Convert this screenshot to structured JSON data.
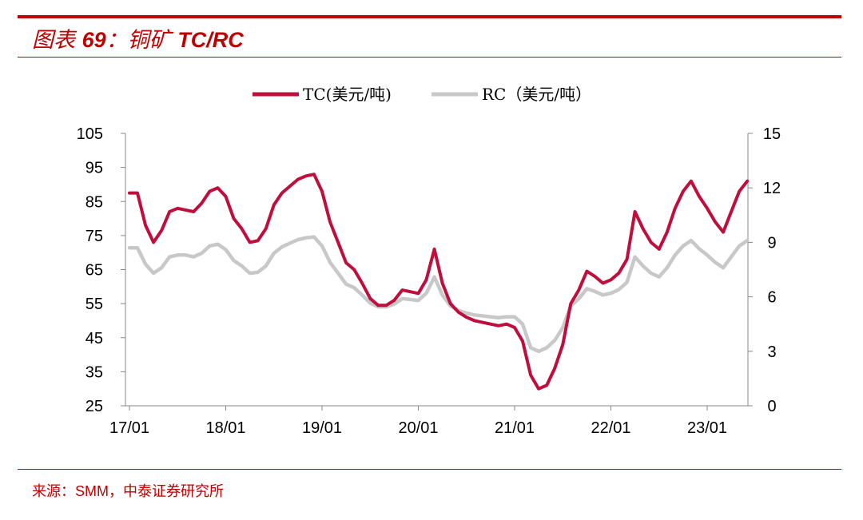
{
  "header": {
    "title_prefix": "图表",
    "title_number": "69",
    "title_sep": "：",
    "title_name": "铜矿",
    "title_code": "TC/RC"
  },
  "footer": {
    "source_label": "来源：",
    "source_en": "SMM",
    "source_rest": "，中泰证券研究所"
  },
  "colors": {
    "accent": "#c00000",
    "tc_line": "#c00d3c",
    "rc_line": "#c8c8c8"
  },
  "chart_data": {
    "type": "line",
    "title": "",
    "xlabel": "",
    "ylabel": "",
    "x_tick_labels": [
      "17/01",
      "18/01",
      "19/01",
      "20/01",
      "21/01",
      "22/01",
      "23/01"
    ],
    "left_axis": {
      "range": [
        25,
        105
      ],
      "ticks": [
        "25",
        "35",
        "45",
        "55",
        "65",
        "75",
        "85",
        "95",
        "105"
      ]
    },
    "right_axis": {
      "range": [
        0,
        15
      ],
      "ticks": [
        "0",
        "3",
        "6",
        "9",
        "12",
        "15"
      ]
    },
    "grid": false,
    "legend_position": "top-center",
    "series": [
      {
        "name": "TC(美元/吨)",
        "axis": "left",
        "color": "#c00d3c",
        "points": [
          [
            "2017-01",
            87.5
          ],
          [
            "2017-02",
            87.5
          ],
          [
            "2017-03",
            78
          ],
          [
            "2017-04",
            73
          ],
          [
            "2017-05",
            76.5
          ],
          [
            "2017-06",
            82
          ],
          [
            "2017-07",
            83
          ],
          [
            "2017-08",
            82.5
          ],
          [
            "2017-09",
            82
          ],
          [
            "2017-10",
            84.5
          ],
          [
            "2017-11",
            88
          ],
          [
            "2017-12",
            89
          ],
          [
            "2018-01",
            86.5
          ],
          [
            "2018-02",
            80
          ],
          [
            "2018-03",
            77
          ],
          [
            "2018-04",
            73
          ],
          [
            "2018-05",
            73.5
          ],
          [
            "2018-06",
            77
          ],
          [
            "2018-07",
            84
          ],
          [
            "2018-08",
            87.5
          ],
          [
            "2018-09",
            89.5
          ],
          [
            "2018-10",
            91.5
          ],
          [
            "2018-11",
            92.5
          ],
          [
            "2018-12",
            93
          ],
          [
            "2019-01",
            88
          ],
          [
            "2019-02",
            79
          ],
          [
            "2019-03",
            73
          ],
          [
            "2019-04",
            67
          ],
          [
            "2019-05",
            65
          ],
          [
            "2019-06",
            61
          ],
          [
            "2019-07",
            56.5
          ],
          [
            "2019-08",
            54.5
          ],
          [
            "2019-09",
            54.5
          ],
          [
            "2019-10",
            56
          ],
          [
            "2019-11",
            59
          ],
          [
            "2019-12",
            58.5
          ],
          [
            "2020-01",
            58
          ],
          [
            "2020-02",
            62
          ],
          [
            "2020-03",
            71
          ],
          [
            "2020-04",
            61
          ],
          [
            "2020-05",
            55
          ],
          [
            "2020-06",
            52.5
          ],
          [
            "2020-07",
            51
          ],
          [
            "2020-08",
            50
          ],
          [
            "2020-09",
            49.5
          ],
          [
            "2020-10",
            49
          ],
          [
            "2020-11",
            48.5
          ],
          [
            "2020-12",
            49
          ],
          [
            "2021-01",
            48
          ],
          [
            "2021-02",
            44
          ],
          [
            "2021-03",
            34
          ],
          [
            "2021-04",
            30
          ],
          [
            "2021-05",
            31
          ],
          [
            "2021-06",
            36
          ],
          [
            "2021-07",
            43
          ],
          [
            "2021-08",
            55
          ],
          [
            "2021-09",
            59
          ],
          [
            "2021-10",
            64.5
          ],
          [
            "2021-11",
            63
          ],
          [
            "2021-12",
            61
          ],
          [
            "2022-01",
            62
          ],
          [
            "2022-02",
            64
          ],
          [
            "2022-03",
            68
          ],
          [
            "2022-04",
            82
          ],
          [
            "2022-05",
            77
          ],
          [
            "2022-06",
            73
          ],
          [
            "2022-07",
            71
          ],
          [
            "2022-08",
            76
          ],
          [
            "2022-09",
            83
          ],
          [
            "2022-10",
            88
          ],
          [
            "2022-11",
            91
          ],
          [
            "2022-12",
            86.5
          ],
          [
            "2023-01",
            83
          ],
          [
            "2023-02",
            79
          ],
          [
            "2023-03",
            76
          ],
          [
            "2023-04",
            82
          ],
          [
            "2023-05",
            88
          ],
          [
            "2023-06",
            91
          ]
        ]
      },
      {
        "name": "RC（美元/吨）",
        "axis": "right",
        "color": "#c8c8c8",
        "points": [
          [
            "2017-01",
            8.7
          ],
          [
            "2017-02",
            8.7
          ],
          [
            "2017-03",
            7.8
          ],
          [
            "2017-04",
            7.3
          ],
          [
            "2017-05",
            7.6
          ],
          [
            "2017-06",
            8.2
          ],
          [
            "2017-07",
            8.3
          ],
          [
            "2017-08",
            8.3
          ],
          [
            "2017-09",
            8.2
          ],
          [
            "2017-10",
            8.4
          ],
          [
            "2017-11",
            8.8
          ],
          [
            "2017-12",
            8.9
          ],
          [
            "2018-01",
            8.6
          ],
          [
            "2018-02",
            8.0
          ],
          [
            "2018-03",
            7.7
          ],
          [
            "2018-04",
            7.3
          ],
          [
            "2018-05",
            7.35
          ],
          [
            "2018-06",
            7.7
          ],
          [
            "2018-07",
            8.4
          ],
          [
            "2018-08",
            8.75
          ],
          [
            "2018-09",
            8.95
          ],
          [
            "2018-10",
            9.15
          ],
          [
            "2018-11",
            9.25
          ],
          [
            "2018-12",
            9.3
          ],
          [
            "2019-01",
            8.8
          ],
          [
            "2019-02",
            7.9
          ],
          [
            "2019-03",
            7.3
          ],
          [
            "2019-04",
            6.7
          ],
          [
            "2019-05",
            6.5
          ],
          [
            "2019-06",
            6.1
          ],
          [
            "2019-07",
            5.65
          ],
          [
            "2019-08",
            5.45
          ],
          [
            "2019-09",
            5.45
          ],
          [
            "2019-10",
            5.6
          ],
          [
            "2019-11",
            5.9
          ],
          [
            "2019-12",
            5.85
          ],
          [
            "2020-01",
            5.8
          ],
          [
            "2020-02",
            6.2
          ],
          [
            "2020-03",
            7.1
          ],
          [
            "2020-04",
            6.1
          ],
          [
            "2020-05",
            5.5
          ],
          [
            "2020-06",
            5.25
          ],
          [
            "2020-07",
            5.1
          ],
          [
            "2020-08",
            5.0
          ],
          [
            "2020-09",
            4.95
          ],
          [
            "2020-10",
            4.9
          ],
          [
            "2020-11",
            4.85
          ],
          [
            "2020-12",
            4.9
          ],
          [
            "2021-01",
            4.9
          ],
          [
            "2021-02",
            4.5
          ],
          [
            "2021-03",
            3.2
          ],
          [
            "2021-04",
            3.0
          ],
          [
            "2021-05",
            3.2
          ],
          [
            "2021-06",
            3.6
          ],
          [
            "2021-07",
            4.3
          ],
          [
            "2021-08",
            5.5
          ],
          [
            "2021-09",
            5.9
          ],
          [
            "2021-10",
            6.45
          ],
          [
            "2021-11",
            6.3
          ],
          [
            "2021-12",
            6.1
          ],
          [
            "2022-01",
            6.2
          ],
          [
            "2022-02",
            6.4
          ],
          [
            "2022-03",
            6.8
          ],
          [
            "2022-04",
            8.2
          ],
          [
            "2022-05",
            7.7
          ],
          [
            "2022-06",
            7.3
          ],
          [
            "2022-07",
            7.1
          ],
          [
            "2022-08",
            7.6
          ],
          [
            "2022-09",
            8.3
          ],
          [
            "2022-10",
            8.8
          ],
          [
            "2022-11",
            9.1
          ],
          [
            "2022-12",
            8.65
          ],
          [
            "2023-01",
            8.3
          ],
          [
            "2023-02",
            7.9
          ],
          [
            "2023-03",
            7.6
          ],
          [
            "2023-04",
            8.2
          ],
          [
            "2023-05",
            8.8
          ],
          [
            "2023-06",
            9.1
          ]
        ]
      }
    ]
  }
}
